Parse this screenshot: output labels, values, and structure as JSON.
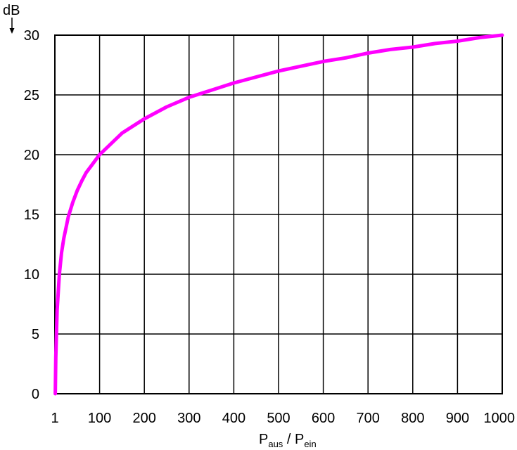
{
  "chart_data": {
    "type": "line",
    "ylabel": "dB",
    "xlabel_main": "P",
    "xlabel_sub1": "aus",
    "xlabel_sep": " / P",
    "xlabel_sub2": "ein",
    "x_ticks": [
      "1",
      "100",
      "200",
      "300",
      "400",
      "500",
      "600",
      "700",
      "800",
      "900",
      "1000"
    ],
    "y_ticks": [
      "0",
      "5",
      "10",
      "15",
      "20",
      "25",
      "30"
    ],
    "xlim": [
      0,
      1000
    ],
    "ylim": [
      0,
      30
    ],
    "grid": true,
    "line_color": "#ff00ff",
    "series": [
      {
        "x": [
          1,
          2,
          5,
          10,
          15,
          20,
          30,
          40,
          50,
          60,
          70,
          80,
          90,
          100,
          150,
          200,
          250,
          300,
          350,
          400,
          450,
          500,
          550,
          600,
          650,
          700,
          750,
          800,
          850,
          900,
          950,
          1000
        ],
        "y": [
          0,
          3.0,
          7.0,
          10.0,
          11.8,
          13.0,
          14.8,
          16.0,
          17.0,
          17.8,
          18.5,
          19.0,
          19.5,
          20.0,
          21.8,
          23.0,
          24.0,
          24.8,
          25.4,
          26.0,
          26.5,
          27.0,
          27.4,
          27.8,
          28.1,
          28.5,
          28.8,
          29.0,
          29.3,
          29.5,
          29.8,
          30.0
        ]
      }
    ]
  }
}
